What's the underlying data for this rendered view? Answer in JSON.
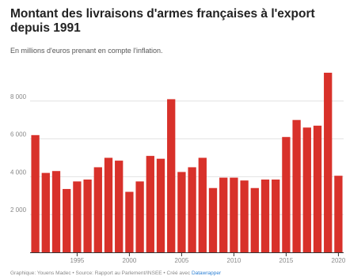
{
  "chart": {
    "title": "Montant des livraisons d'armes françaises à l'export depuis 1991",
    "subtitle": "En millions d'euros prenant en compte l'inflation.",
    "footer_prefix": "Graphique: Youens Madec • Source: Rapport au Parlement/INSEE • Créé avec ",
    "footer_link": "Datawrapper"
  },
  "colors": {
    "bar": "#d8312a",
    "grid": "#e2e2e2",
    "axis": "#333333"
  },
  "chart_data": {
    "type": "bar",
    "title": "Montant des livraisons d'armes françaises à l'export depuis 1991",
    "subtitle": "En millions d'euros prenant en compte l'inflation.",
    "xlabel": "",
    "ylabel": "",
    "x": [
      1991,
      1992,
      1993,
      1994,
      1995,
      1996,
      1997,
      1998,
      1999,
      2000,
      2001,
      2002,
      2003,
      2004,
      2005,
      2006,
      2007,
      2008,
      2009,
      2010,
      2011,
      2012,
      2013,
      2014,
      2015,
      2016,
      2017,
      2018,
      2019,
      2020
    ],
    "values": [
      6200,
      4200,
      4300,
      3350,
      3750,
      3850,
      4500,
      5000,
      4850,
      3200,
      3750,
      5100,
      4950,
      8100,
      4250,
      4500,
      5000,
      3400,
      3950,
      3950,
      3800,
      3400,
      3850,
      3850,
      6100,
      7000,
      6600,
      6700,
      9500,
      4050
    ],
    "ylim": [
      0,
      10000
    ],
    "y_ticks": [
      2000,
      4000,
      6000,
      8000
    ],
    "y_tick_labels": [
      "2 000",
      "4 000",
      "6 000",
      "8 000"
    ],
    "x_ticks": [
      1995,
      2000,
      2005,
      2010,
      2015,
      2020
    ],
    "x_tick_labels": [
      "1995",
      "2000",
      "2005",
      "2010",
      "2015",
      "2020"
    ],
    "grid": true,
    "legend": "none"
  }
}
